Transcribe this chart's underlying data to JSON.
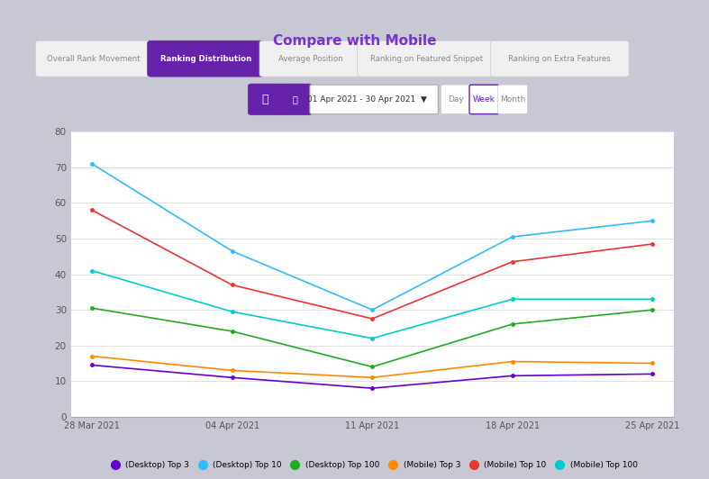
{
  "title": "Compare with Mobile",
  "x_labels": [
    "28 Mar 2021",
    "04 Apr 2021",
    "11 Apr 2021",
    "18 Apr 2021",
    "25 Apr 2021"
  ],
  "series": {
    "Desktop Top 3": {
      "color": "#6600cc",
      "values": [
        14.5,
        11.0,
        8.0,
        11.5,
        12.0
      ]
    },
    "Desktop Top 10": {
      "color": "#33bbff",
      "values": [
        71.0,
        46.5,
        30.0,
        50.5,
        55.0
      ]
    },
    "Desktop Top 100": {
      "color": "#22aa22",
      "values": [
        30.5,
        24.0,
        14.0,
        26.0,
        30.0
      ]
    },
    "Mobile Top 3": {
      "color": "#ff8800",
      "values": [
        17.0,
        13.0,
        11.0,
        15.5,
        15.0
      ]
    },
    "Mobile Top 10": {
      "color": "#ee3333",
      "values": [
        58.0,
        37.0,
        27.5,
        43.5,
        48.5
      ]
    },
    "Mobile Top 100": {
      "color": "#00cccc",
      "values": [
        41.0,
        29.5,
        22.0,
        33.0,
        33.0
      ]
    }
  },
  "legend_labels": [
    "(Desktop) Top 3",
    "(Desktop) Top 10",
    "(Desktop) Top 100",
    "(Mobile) Top 3",
    "(Mobile) Top 10",
    "(Mobile) Top 100"
  ],
  "legend_colors": [
    "#6600cc",
    "#33bbff",
    "#22aa22",
    "#ff8800",
    "#ee3333",
    "#00cccc"
  ],
  "ylim": [
    0,
    80
  ],
  "yticks": [
    0,
    10,
    20,
    30,
    40,
    50,
    60,
    70,
    80
  ],
  "bg_color": "#c8c8d4",
  "panel_color": "#ffffff",
  "title_color": "#7733cc",
  "title_fontsize": 11,
  "grid_color": "#e0e0e0",
  "tab_active_color": "#6622aa",
  "tab_active_text": "#ffffff",
  "tab_inactive_text": "#888888",
  "tab_labels": [
    "Overall Rank Movement",
    "Ranking Distribution",
    "Average Position",
    "Ranking on Featured Snippet",
    "Ranking on Extra Features"
  ],
  "date_label": "01 Apr 2021 - 30 Apr 2021",
  "period_buttons": [
    "Day",
    "Week",
    "Month"
  ]
}
